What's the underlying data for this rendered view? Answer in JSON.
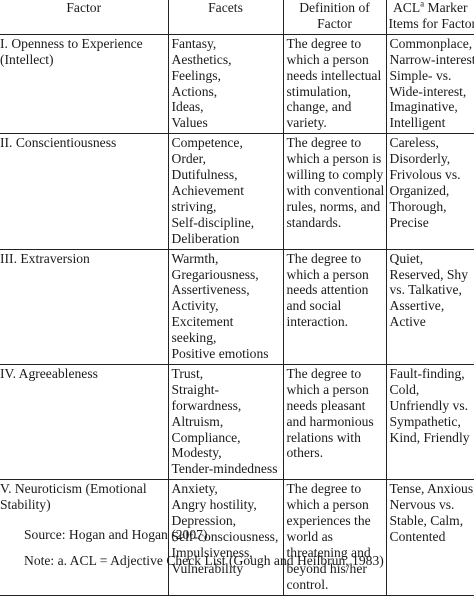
{
  "table": {
    "headers": {
      "factor": "Factor",
      "facets": "Facets",
      "definition_lines": [
        "Definition of",
        "Factor"
      ],
      "acl_prefix": "ACL",
      "acl_sup": "a",
      "acl_suffix": " Marker",
      "acl_line2": "Items for Factor"
    },
    "rows": [
      {
        "factor_lines": [
          "I. Openness to Experience",
          "(Intellect)"
        ],
        "facets": [
          "Fantasy,",
          "Aesthetics,",
          "Feelings,",
          "Actions,",
          "Ideas,",
          "Values"
        ],
        "definition": [
          "The degree to",
          "which a person",
          "needs intellectual",
          "stimulation,",
          "change, and",
          "variety."
        ],
        "markers": [
          "Commonplace,",
          "Narrow-interest,",
          "Simple- vs.",
          "Wide-interest,",
          "Imaginative,",
          "Intelligent"
        ]
      },
      {
        "factor_lines": [
          "II. Conscientiousness"
        ],
        "facets": [
          "Competence,",
          "Order,",
          "Dutifulness,",
          "Achievement",
          "striving,",
          "Self-discipline,",
          "Deliberation"
        ],
        "definition": [
          "The degree to",
          "which a person is",
          "willing to comply",
          "with conventional",
          "rules, norms, and",
          "standards."
        ],
        "markers": [
          "Careless,",
          "Disorderly,",
          "Frivolous vs.",
          "Organized,",
          "Thorough,",
          "Precise"
        ]
      },
      {
        "factor_lines": [
          "III. Extraversion"
        ],
        "facets": [
          "Warmth,",
          "Gregariousness,",
          "Assertiveness,",
          "Activity,",
          "Excitement",
          "seeking,",
          "Positive emotions"
        ],
        "definition": [
          "The degree to",
          "which a person",
          "needs attention",
          "and social",
          "interaction."
        ],
        "markers": [
          "Quiet,",
          "Reserved, Shy",
          "vs. Talkative,",
          "Assertive,",
          "Active"
        ]
      },
      {
        "factor_lines": [
          "IV. Agreeableness"
        ],
        "facets": [
          "Trust,",
          "Straight-",
          "forwardness,",
          "Altruism,",
          "Compliance,",
          "Modesty,",
          "Tender-mindedness"
        ],
        "definition": [
          "The degree to",
          "which a person",
          "needs pleasant",
          "and harmonious",
          "relations with",
          "others."
        ],
        "markers": [
          "Fault-finding,",
          "Cold,",
          "Unfriendly vs.",
          "Sympathetic,",
          "Kind, Friendly"
        ]
      },
      {
        "factor_lines": [
          "V. Neuroticism (Emotional",
          "Stability)"
        ],
        "facets": [
          "Anxiety,",
          "Angry hostility,",
          "Depression,",
          "Self-consciousness,",
          "Impulsiveness,",
          "Vulnerability"
        ],
        "definition": [
          "The degree to",
          "which a person",
          "experiences the",
          "world as",
          "threatening and",
          "beyond his/her",
          "control."
        ],
        "markers": [
          "Tense, Anxious,",
          "Nervous vs.",
          "Stable, Calm,",
          "Contented"
        ]
      }
    ]
  },
  "source": "Source: Hogan and Hogan (2007)",
  "note": "Note: a. ACL = Adjective Check List (Gough and Heilbrun, 1983)"
}
